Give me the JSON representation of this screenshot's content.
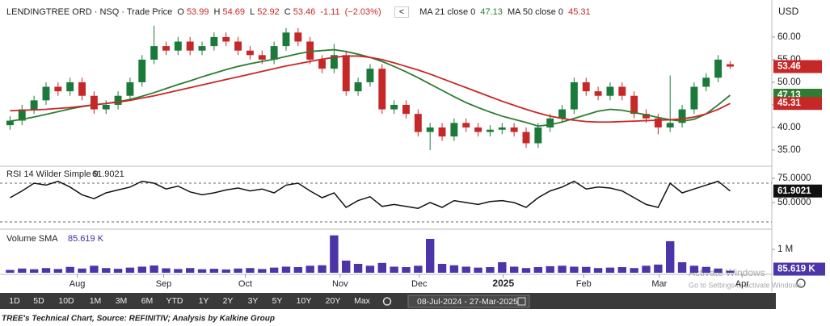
{
  "chart_data": [
    {
      "type": "candlestick",
      "name": "LENDINGTREE ORD",
      "exchange": "NSQ",
      "field": "Trade Price",
      "ohlc_labels": [
        "O",
        "H",
        "L",
        "C"
      ],
      "open": [
        40.5,
        41.5,
        44,
        46,
        49,
        48,
        50,
        47,
        44,
        45,
        47,
        50,
        55,
        58,
        57,
        59,
        57,
        58,
        60,
        59,
        57,
        56,
        55,
        58,
        61,
        59,
        55,
        53,
        56,
        48,
        50,
        53,
        44,
        45,
        43,
        39,
        40,
        38,
        41,
        40,
        39,
        39.5,
        40,
        39,
        36.5,
        40,
        42,
        44,
        50,
        48,
        47,
        49,
        47,
        43,
        42,
        40,
        41,
        44,
        49,
        51,
        53.99
      ],
      "high": [
        42.5,
        45,
        47,
        50,
        50,
        51,
        51,
        48,
        46,
        48,
        51,
        56,
        62.5,
        59,
        60,
        60,
        59,
        61,
        61,
        60,
        58,
        57,
        59,
        62,
        62,
        60,
        56,
        58.5,
        57,
        51,
        54,
        54,
        46,
        46,
        44,
        41,
        41,
        42,
        42,
        41,
        40.5,
        41,
        41,
        40,
        41,
        43,
        45,
        51,
        51,
        49,
        50,
        50,
        48,
        44,
        43,
        51.5,
        45,
        50,
        52,
        56,
        54.69
      ],
      "low": [
        39.5,
        40.5,
        43,
        45,
        47,
        47,
        46,
        43,
        43,
        44,
        46,
        49,
        54,
        56,
        56,
        56,
        56,
        57,
        58,
        56,
        55,
        54,
        54,
        57,
        58,
        54,
        52,
        52,
        47,
        47,
        49,
        43,
        43,
        42,
        38,
        35,
        37,
        37,
        39,
        38,
        38,
        38.5,
        38,
        35.5,
        35.5,
        39,
        41,
        43,
        47,
        46,
        46,
        46,
        42,
        41,
        38.5,
        39,
        40,
        43,
        48,
        50,
        52.92
      ],
      "close": [
        41.5,
        44,
        46,
        49,
        48,
        50,
        47,
        44,
        45,
        47,
        50,
        55,
        58,
        57,
        59,
        57,
        58,
        60,
        59,
        57,
        56,
        55,
        58,
        61,
        59,
        55,
        53,
        56,
        48,
        50,
        53,
        44,
        45,
        43,
        39,
        40,
        38,
        41,
        40,
        39,
        39.5,
        40,
        39,
        36.5,
        40,
        42,
        44,
        50,
        48,
        47,
        49,
        47,
        43,
        42,
        40,
        41,
        44,
        49,
        51,
        55,
        53.46
      ],
      "change": -1.11,
      "change_pct": {
        "value": -2.03,
        "label": "(−2.03%)"
      },
      "up_color": "#1b7a3a",
      "down_color": "#c62828",
      "series": [
        {
          "name": "MA 21 close 0",
          "color": "#2e7d32",
          "values": [
            41.4,
            41.8,
            42.3,
            42.9,
            43.5,
            44.1,
            44.6,
            45,
            45.3,
            45.7,
            46.2,
            46.9,
            47.7,
            48.6,
            49.5,
            50.3,
            51.2,
            52,
            52.8,
            53.5,
            54.1,
            54.6,
            55.1,
            55.7,
            56.3,
            56.8,
            57,
            57.2,
            56.8,
            56.2,
            55.5,
            54.6,
            53.5,
            52.3,
            51,
            49.6,
            48.2,
            46.8,
            45.5,
            44.4,
            43.4,
            42.5,
            41.8,
            41.1,
            40.3,
            40.6,
            41.2,
            42,
            42.8,
            43.6,
            44,
            43.8,
            43.3,
            42.8,
            42.2,
            41.7,
            41.4,
            41.8,
            43,
            45,
            47.13
          ]
        },
        {
          "name": "MA 50 close 0",
          "color": "#c62828",
          "values": [
            43.7,
            43.8,
            43.9,
            44,
            44.2,
            44.4,
            44.7,
            45,
            45.3,
            45.6,
            46,
            46.5,
            47,
            47.6,
            48.2,
            48.8,
            49.4,
            50,
            50.6,
            51.2,
            51.8,
            52.4,
            53,
            53.6,
            54.1,
            54.6,
            55.1,
            55.5,
            55.8,
            55.8,
            55.5,
            55,
            54.3,
            53.5,
            52.7,
            51.8,
            50.8,
            49.8,
            48.8,
            47.8,
            46.8,
            45.8,
            44.9,
            44,
            43.2,
            42.5,
            42,
            41.6,
            41.3,
            41.2,
            41.2,
            41.3,
            41.4,
            41.5,
            41.6,
            41.7,
            41.9,
            42.3,
            43,
            44,
            45.31
          ]
        }
      ],
      "currency": "USD",
      "ylim": [
        31.6,
        67.3
      ],
      "yticks": [
        {
          "value": 35,
          "label": "35.00"
        },
        {
          "value": 40,
          "label": "40.00"
        },
        {
          "value": 45,
          "label": "45.00"
        },
        {
          "value": 50,
          "label": "50.00"
        },
        {
          "value": 55,
          "label": "55.00"
        },
        {
          "value": 60,
          "label": "60.00"
        }
      ],
      "xlim": [
        -0.5,
        63
      ],
      "xticks": [
        {
          "value": 5.6,
          "label": "Aug"
        },
        {
          "value": 12.8,
          "label": "Sep"
        },
        {
          "value": 19.6,
          "label": "Oct"
        },
        {
          "value": 27.5,
          "label": "Nov"
        },
        {
          "value": 34.1,
          "label": "Dec"
        },
        {
          "value": 41.1,
          "label": "2025"
        },
        {
          "value": 47.8,
          "label": "Feb"
        },
        {
          "value": 54.1,
          "label": "Mar"
        },
        {
          "value": 61.0,
          "label": "Apr"
        }
      ]
    },
    {
      "type": "line",
      "title": "RSI 14 Wilder Simple 9",
      "color": "#111111",
      "values": [
        55,
        62,
        70,
        68,
        72,
        66,
        58,
        54,
        60,
        63,
        66,
        72,
        70,
        64,
        67,
        61,
        58,
        60,
        63,
        65,
        62,
        64,
        60,
        68,
        70,
        62,
        55,
        60,
        45,
        52,
        56,
        46,
        48,
        46,
        44,
        50,
        45,
        52,
        50,
        48,
        51,
        52,
        50,
        45,
        55,
        62,
        66,
        72,
        64,
        66,
        65,
        62,
        55,
        48,
        45,
        70,
        60,
        64,
        68,
        72,
        61.9021
      ],
      "bands": [
        30,
        70
      ],
      "ylim": [
        23.3,
        86.7
      ],
      "yticks": [
        {
          "value": 50,
          "label": "50.0000"
        },
        {
          "value": 75,
          "label": "75.0000"
        }
      ],
      "xlim": [
        -0.5,
        63
      ]
    },
    {
      "type": "bar",
      "title": "Volume SMA",
      "color": "#4b35a8",
      "values": [
        120000,
        180000,
        150000,
        200000,
        160000,
        250000,
        180000,
        300000,
        200000,
        170000,
        220000,
        260000,
        310000,
        190000,
        160000,
        200000,
        150000,
        170000,
        140000,
        180000,
        200000,
        160000,
        220000,
        260000,
        240000,
        300000,
        320000,
        1600000,
        520000,
        380000,
        300000,
        420000,
        260000,
        240000,
        300000,
        1450000,
        380000,
        320000,
        260000,
        220000,
        240000,
        450000,
        260000,
        200000,
        240000,
        280000,
        300000,
        260000,
        250000,
        200000,
        220000,
        240000,
        200000,
        300000,
        350000,
        1350000,
        450000,
        300000,
        250000,
        180000,
        85619
      ],
      "last_value_label": "85.619 K",
      "ylim": [
        0,
        1830000
      ],
      "yticks": [
        {
          "value": 1000000,
          "label": "1 M"
        }
      ],
      "xlim": [
        -0.5,
        63
      ]
    }
  ],
  "ui": {
    "ranges": [
      "1D",
      "5D",
      "10D",
      "1M",
      "3M",
      "6M",
      "YTD",
      "1Y",
      "2Y",
      "3Y",
      "5Y",
      "10Y",
      "20Y",
      "Max"
    ],
    "date_range": "08-Jul-2024 - 27-Mar-2025",
    "watermark": [
      "Activate Windows",
      "Go to Settings to activate Windows."
    ],
    "caption": "TREE's Technical Chart, Source: REFINITIV; Analysis by Kalkine Group"
  }
}
